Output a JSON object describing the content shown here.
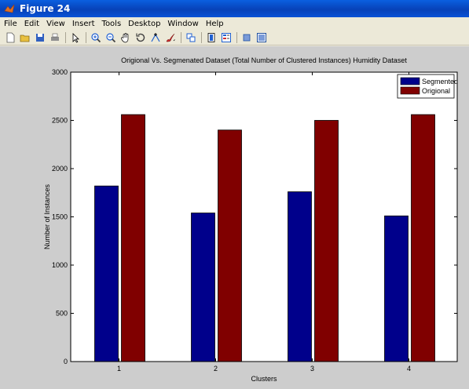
{
  "window": {
    "title": "Figure 24"
  },
  "menu": {
    "items": [
      "File",
      "Edit",
      "View",
      "Insert",
      "Tools",
      "Desktop",
      "Window",
      "Help"
    ]
  },
  "toolbar": {
    "buttons": [
      {
        "name": "new-figure-icon",
        "color": "#ffffff"
      },
      {
        "name": "open-file-icon",
        "color": "#e8c040"
      },
      {
        "name": "save-icon",
        "color": "#3060c0"
      },
      {
        "name": "print-icon",
        "color": "#808080"
      },
      {
        "sep": true
      },
      {
        "name": "edit-plot-arrow-icon",
        "color": "#000000"
      },
      {
        "sep": true
      },
      {
        "name": "zoom-in-icon",
        "color": "#2060d0"
      },
      {
        "name": "zoom-out-icon",
        "color": "#2060d0"
      },
      {
        "name": "pan-hand-icon",
        "color": "#c08040"
      },
      {
        "name": "rotate-3d-icon",
        "color": "#404040"
      },
      {
        "name": "data-cursor-icon",
        "color": "#2060d0"
      },
      {
        "name": "brush-icon",
        "color": "#d03030"
      },
      {
        "sep": true
      },
      {
        "name": "link-plot-icon",
        "color": "#2060d0"
      },
      {
        "sep": true
      },
      {
        "name": "colorbar-icon",
        "color": "#2060d0"
      },
      {
        "name": "legend-icon",
        "color": "#2060d0"
      },
      {
        "sep": true
      },
      {
        "name": "hide-plot-tools-icon",
        "color": "#2060d0"
      },
      {
        "name": "show-plot-tools-icon",
        "color": "#2060d0"
      }
    ]
  },
  "chart_data": {
    "type": "bar",
    "title": "Origional Vs. Segmenated Dataset (Total Number of Clustered Instances) Humidity Dataset",
    "xlabel": "Clusters",
    "ylabel": "Number of Instances",
    "categories": [
      "1",
      "2",
      "3",
      "4"
    ],
    "series": [
      {
        "name": "Segmented",
        "color": "#00008b",
        "values": [
          1820,
          1540,
          1760,
          1510
        ]
      },
      {
        "name": "Origional",
        "color": "#800000",
        "values": [
          2560,
          2400,
          2500,
          2560
        ]
      }
    ],
    "ylim": [
      0,
      3000
    ],
    "yticks": [
      "0",
      "500",
      "1000",
      "1500",
      "2000",
      "2500",
      "3000"
    ],
    "grid": false,
    "legend_position": "top-right",
    "background": "#ffffff"
  }
}
